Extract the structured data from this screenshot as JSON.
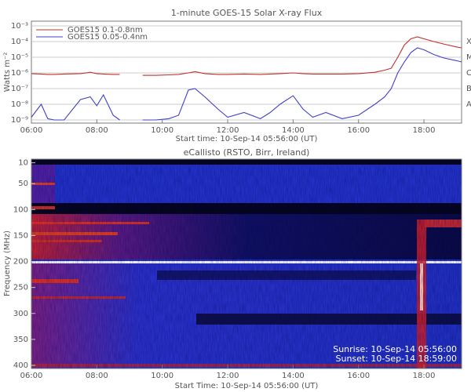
{
  "chart_data": [
    {
      "type": "line",
      "title": "1-minute GOES-15 Solar X-ray Flux",
      "xlabel": "Start time: 10-Sep-14 05:56:00 (UT)",
      "ylabel": "Watts m⁻²",
      "log_y": true,
      "grid": true,
      "legend": "upper left",
      "xlim": [
        6,
        19.15
      ],
      "xticks": [
        {
          "value": 6,
          "label": "06:00"
        },
        {
          "value": 8,
          "label": "08:00"
        },
        {
          "value": 10,
          "label": "10:00"
        },
        {
          "value": 12,
          "label": "12:00"
        },
        {
          "value": 14,
          "label": "14:00"
        },
        {
          "value": 16,
          "label": "16:00"
        },
        {
          "value": 18,
          "label": "18:00"
        }
      ],
      "ylim": [
        1e-09,
        0.001
      ],
      "yticks": [
        {
          "value": 1e-09,
          "label": "10⁻⁹"
        },
        {
          "value": 1e-08,
          "label": "10⁻⁸"
        },
        {
          "value": 1e-07,
          "label": "10⁻⁷"
        },
        {
          "value": 1e-06,
          "label": "10⁻⁶"
        },
        {
          "value": 1e-05,
          "label": "10⁻⁵"
        },
        {
          "value": 0.0001,
          "label": "10⁻⁴"
        },
        {
          "value": 0.001,
          "label": "10⁻³"
        }
      ],
      "y2lim": [
        1e-09,
        0.001
      ],
      "y2ticks": [
        {
          "value": 1e-08,
          "label": "A"
        },
        {
          "value": 1e-07,
          "label": "B"
        },
        {
          "value": 1e-06,
          "label": "C"
        },
        {
          "value": 1e-05,
          "label": "M"
        },
        {
          "value": 0.0001,
          "label": "X"
        }
      ],
      "x": [
        6.0,
        6.3,
        6.5,
        6.7,
        7.0,
        7.5,
        7.8,
        8.0,
        8.2,
        8.5,
        8.7,
        9.0,
        9.4,
        9.8,
        10.2,
        10.5,
        10.8,
        11.0,
        11.3,
        11.7,
        12.0,
        12.5,
        13.0,
        13.3,
        13.6,
        14.0,
        14.3,
        14.6,
        15.0,
        15.5,
        16.0,
        16.5,
        16.8,
        17.0,
        17.2,
        17.4,
        17.6,
        17.8,
        18.0,
        18.3,
        18.6,
        19.0,
        19.15
      ],
      "series": [
        {
          "name": "GOES15 0.1-0.8nm",
          "color": "#c0302a",
          "values": [
            9e-07,
            8.5e-07,
            8e-07,
            8e-07,
            8.5e-07,
            9e-07,
            1.1e-06,
            9e-07,
            8.5e-07,
            8e-07,
            8e-07,
            null,
            7e-07,
            7e-07,
            7.5e-07,
            8e-07,
            1e-06,
            1.2e-06,
            9e-07,
            8e-07,
            8e-07,
            8.5e-07,
            8e-07,
            8.5e-07,
            9e-07,
            1e-06,
            9e-07,
            8.5e-07,
            8.5e-07,
            8.5e-07,
            9e-07,
            1.1e-06,
            1.5e-06,
            2e-06,
            1e-05,
            6e-05,
            0.00015,
            0.0002,
            0.00015,
            0.0001,
            7e-05,
            4.5e-05,
            4e-05
          ]
        },
        {
          "name": "GOES15 0.05-0.4nm",
          "color": "#4040c8",
          "values": [
            1.5e-09,
            1e-08,
            1.2e-09,
            1e-09,
            1e-09,
            2e-08,
            3e-08,
            8e-09,
            4e-08,
            2e-09,
            1e-09,
            null,
            1e-09,
            1e-09,
            1.2e-09,
            2e-09,
            8e-08,
            1e-07,
            3e-08,
            5e-09,
            1.5e-09,
            3e-09,
            1.2e-09,
            3e-09,
            1e-08,
            3.5e-08,
            5e-09,
            1.5e-09,
            3e-09,
            1.2e-09,
            2e-09,
            1e-08,
            3e-08,
            1e-07,
            1e-06,
            5e-06,
            2e-05,
            4e-05,
            3e-05,
            1.5e-05,
            9e-06,
            6e-06,
            5e-06
          ]
        }
      ]
    },
    {
      "type": "spectrogram",
      "title": "eCallisto (RSTO, Birr, Ireland)",
      "xlabel": "Start Time: 10-Sep-14 05:56:00 (UT)",
      "ylabel": "Frequency (MHz)",
      "y_inverted": true,
      "xlim": [
        6,
        19.15
      ],
      "xticks": [
        {
          "value": 6,
          "label": "06:00"
        },
        {
          "value": 8,
          "label": "08:00"
        },
        {
          "value": 10,
          "label": "10:00"
        },
        {
          "value": 12,
          "label": "12:00"
        },
        {
          "value": 14,
          "label": "14:00"
        },
        {
          "value": 16,
          "label": "16:00"
        },
        {
          "value": 18,
          "label": "18:00"
        }
      ],
      "ylim": [
        3,
        406
      ],
      "yticks": [
        10,
        50,
        100,
        150,
        200,
        250,
        300,
        350,
        400
      ],
      "annotations": [
        "Sunrise: 10-Sep-14 05:56:00",
        "Sunset: 10-Sep-14 18:59:00"
      ]
    }
  ]
}
